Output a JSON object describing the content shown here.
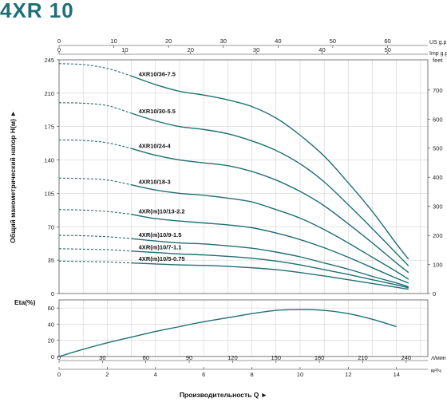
{
  "title": "4XR 10",
  "colors": {
    "curve": "#1f6f74",
    "title": "#1e6f78",
    "grid": "#c8c8c8"
  },
  "chart_data": [
    {
      "type": "line",
      "ylabel": "Общий манометрический напор H(м) ►",
      "y_right_label": "feet",
      "top_axis_1_label": "US g.p.m",
      "top_axis_2_label": "Imp g.p.m",
      "xlim_m3h": [
        0,
        15.3
      ],
      "ylim": [
        0,
        245
      ],
      "y_ticks": [
        "0",
        "35",
        "70",
        "105",
        "140",
        "175",
        "210",
        "245"
      ],
      "y_right_ticks": [
        "0",
        "100",
        "200",
        "300",
        "400",
        "500",
        "600",
        "700",
        "feet"
      ],
      "us_gpm_ticks": [
        "0",
        "10",
        "20",
        "30",
        "40",
        "50",
        "60"
      ],
      "imp_gpm_ticks": [
        "0",
        "10",
        "20",
        "30",
        "40",
        "50"
      ],
      "series": [
        {
          "name": "4XR10/36-7.5",
          "points": [
            [
              0,
              241
            ],
            [
              1,
              240
            ],
            [
              2,
              236
            ],
            [
              3,
              228
            ],
            [
              4,
              219
            ],
            [
              5,
              212
            ],
            [
              6,
              208
            ],
            [
              7,
              203
            ],
            [
              8,
              196
            ],
            [
              9,
              184
            ],
            [
              10,
              166
            ],
            [
              11,
              144
            ],
            [
              12,
              116
            ],
            [
              13,
              86
            ],
            [
              14,
              52
            ],
            [
              14.5,
              36
            ]
          ]
        },
        {
          "name": "4XR10/30-5.5",
          "points": [
            [
              0,
              200
            ],
            [
              1,
              199.5
            ],
            [
              2,
              197
            ],
            [
              3,
              189
            ],
            [
              4,
              181
            ],
            [
              5,
              175
            ],
            [
              6,
              172
            ],
            [
              7,
              167.5
            ],
            [
              8,
              160
            ],
            [
              9,
              150
            ],
            [
              10,
              136
            ],
            [
              11,
              117
            ],
            [
              12,
              93
            ],
            [
              13,
              68
            ],
            [
              14,
              42
            ],
            [
              14.5,
              29
            ]
          ]
        },
        {
          "name": "4XR10/24-4",
          "points": [
            [
              0,
              161
            ],
            [
              1,
              160.5
            ],
            [
              2,
              158
            ],
            [
              3,
              152
            ],
            [
              4,
              145
            ],
            [
              5,
              140
            ],
            [
              6,
              137
            ],
            [
              7,
              134
            ],
            [
              8,
              128
            ],
            [
              9,
              119
            ],
            [
              10,
              107
            ],
            [
              11,
              92
            ],
            [
              12,
              73
            ],
            [
              13,
              53
            ],
            [
              14,
              32
            ],
            [
              14.5,
              22
            ]
          ]
        },
        {
          "name": "4XR10/18-3",
          "points": [
            [
              0,
              121
            ],
            [
              1,
              120.5
            ],
            [
              2,
              119
            ],
            [
              3,
              114
            ],
            [
              4,
              108.5
            ],
            [
              5,
              105
            ],
            [
              6,
              103
            ],
            [
              7,
              100
            ],
            [
              8,
              96
            ],
            [
              9,
              88
            ],
            [
              10,
              79
            ],
            [
              11,
              67
            ],
            [
              12,
              53
            ],
            [
              13,
              38
            ],
            [
              14,
              23
            ],
            [
              14.5,
              15
            ]
          ]
        },
        {
          "name": "4XR(m)10/13-2.2",
          "points": [
            [
              0,
              88
            ],
            [
              1,
              87.5
            ],
            [
              2,
              86
            ],
            [
              3,
              83
            ],
            [
              4,
              78.5
            ],
            [
              5,
              76
            ],
            [
              6,
              74
            ],
            [
              7,
              72
            ],
            [
              8,
              69
            ],
            [
              9,
              63.5
            ],
            [
              10,
              56.5
            ],
            [
              11,
              48
            ],
            [
              12,
              38
            ],
            [
              13,
              27
            ],
            [
              14,
              16
            ],
            [
              14.5,
              11
            ]
          ]
        },
        {
          "name": "4XR(m)10/9-1.5",
          "points": [
            [
              0,
              61
            ],
            [
              1,
              60.5
            ],
            [
              2,
              59.5
            ],
            [
              3,
              57.5
            ],
            [
              4,
              55
            ],
            [
              5,
              53
            ],
            [
              6,
              52
            ],
            [
              7,
              50
            ],
            [
              8,
              47.5
            ],
            [
              9,
              43.5
            ],
            [
              10,
              38.5
            ],
            [
              11,
              32
            ],
            [
              12,
              25.5
            ],
            [
              13,
              18
            ],
            [
              14,
              11
            ],
            [
              14.5,
              7
            ]
          ]
        },
        {
          "name": "4XR(m)10/7-1.1",
          "points": [
            [
              0,
              47
            ],
            [
              1,
              46.5
            ],
            [
              2,
              46
            ],
            [
              3,
              44.5
            ],
            [
              4,
              43
            ],
            [
              5,
              41.5
            ],
            [
              6,
              40.5
            ],
            [
              7,
              39
            ],
            [
              8,
              37
            ],
            [
              9,
              34
            ],
            [
              10,
              30
            ],
            [
              11,
              25
            ],
            [
              12,
              20
            ],
            [
              13,
              14.5
            ],
            [
              14,
              9
            ],
            [
              14.5,
              6
            ]
          ]
        },
        {
          "name": "4XR(m)10/5-0.75",
          "points": [
            [
              0,
              34
            ],
            [
              1,
              33.5
            ],
            [
              2,
              33
            ],
            [
              3,
              32
            ],
            [
              4,
              31
            ],
            [
              5,
              30
            ],
            [
              6,
              29.5
            ],
            [
              7,
              28.5
            ],
            [
              8,
              27
            ],
            [
              9,
              25
            ],
            [
              10,
              22
            ],
            [
              11,
              18.5
            ],
            [
              12,
              14.5
            ],
            [
              13,
              10.5
            ],
            [
              14,
              6.5
            ],
            [
              14.5,
              4.5
            ]
          ]
        }
      ]
    },
    {
      "type": "line",
      "ylabel": "Eta(%)",
      "xlabel": "Производительность Q ►",
      "ylim": [
        0,
        70
      ],
      "y_ticks": [
        "0",
        "20",
        "40",
        "60"
      ],
      "lmin_label": "л/мин",
      "m3h_label": "м³/ч",
      "lmin_ticks": [
        "0",
        "30",
        "60",
        "90",
        "120",
        "150",
        "180",
        "210",
        "240"
      ],
      "m3h_ticks": [
        "0",
        "2",
        "4",
        "6",
        "8",
        "10",
        "12",
        "14"
      ],
      "series": [
        {
          "name": "",
          "points": [
            [
              0,
              0
            ],
            [
              1,
              9
            ],
            [
              2,
              17
            ],
            [
              3,
              24
            ],
            [
              4,
              31
            ],
            [
              5,
              37
            ],
            [
              6,
              43
            ],
            [
              7,
              48
            ],
            [
              8,
              53
            ],
            [
              9,
              57
            ],
            [
              10,
              58
            ],
            [
              11,
              57
            ],
            [
              12,
              53
            ],
            [
              13,
              46
            ],
            [
              14,
              37
            ]
          ]
        }
      ]
    }
  ]
}
